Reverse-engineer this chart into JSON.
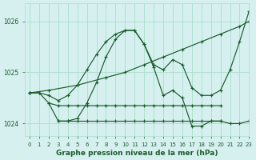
{
  "background_color": "#d6f0f0",
  "grid_color": "#aaddcc",
  "line_color": "#1a5c2a",
  "xlabel": "Graphe pression niveau de la mer (hPa)",
  "xlabel_color": "#1a5c2a",
  "xlim": [
    -0.5,
    23
  ],
  "ylim": [
    1023.75,
    1026.35
  ],
  "yticks": [
    1024,
    1025,
    1026
  ],
  "xticks": [
    0,
    1,
    2,
    3,
    4,
    5,
    6,
    7,
    8,
    9,
    10,
    11,
    12,
    13,
    14,
    15,
    16,
    17,
    18,
    19,
    20,
    21,
    22,
    23
  ],
  "series": [
    {
      "x": [
        0,
        1,
        2,
        3,
        4,
        5,
        6,
        7,
        8,
        9,
        10,
        11,
        12,
        13,
        14,
        15,
        16,
        17,
        18,
        19,
        20,
        21,
        22,
        23
      ],
      "y": [
        1024.6,
        1024.6,
        1024.55,
        1024.45,
        1024.55,
        1024.75,
        1025.05,
        1025.35,
        1025.6,
        1025.75,
        1025.82,
        1025.82,
        1025.55,
        1025.15,
        1025.05,
        1025.25,
        1025.15,
        1024.7,
        1024.55,
        1024.55,
        1024.65,
        1025.05,
        1025.6,
        1026.2
      ]
    },
    {
      "x": [
        0,
        2,
        5,
        8,
        10,
        12,
        14,
        16,
        18,
        20,
        22,
        23
      ],
      "y": [
        1024.6,
        1024.65,
        1024.75,
        1024.9,
        1025.0,
        1025.15,
        1025.3,
        1025.45,
        1025.6,
        1025.75,
        1025.9,
        1026.0
      ]
    },
    {
      "x": [
        2,
        3,
        4,
        5,
        6,
        7,
        8,
        9,
        10,
        11,
        12,
        13,
        14,
        15,
        16,
        17,
        18,
        19,
        20
      ],
      "y": [
        1024.4,
        1024.35,
        1024.35,
        1024.35,
        1024.35,
        1024.35,
        1024.35,
        1024.35,
        1024.35,
        1024.35,
        1024.35,
        1024.35,
        1024.35,
        1024.35,
        1024.35,
        1024.35,
        1024.35,
        1024.35,
        1024.35
      ]
    },
    {
      "x": [
        3,
        4,
        5,
        6,
        7,
        8,
        9,
        10,
        11,
        12,
        13,
        14,
        15,
        16,
        17,
        18,
        19,
        20
      ],
      "y": [
        1024.05,
        1024.05,
        1024.05,
        1024.05,
        1024.05,
        1024.05,
        1024.05,
        1024.05,
        1024.05,
        1024.05,
        1024.05,
        1024.05,
        1024.05,
        1024.05,
        1024.05,
        1024.05,
        1024.05,
        1024.05
      ]
    },
    {
      "x": [
        0,
        1,
        2,
        3,
        4,
        5,
        6,
        7,
        8,
        9,
        10,
        11,
        12,
        13,
        14,
        15,
        16,
        17,
        18,
        19,
        20,
        21,
        22,
        23
      ],
      "y": [
        1024.6,
        1024.6,
        1024.4,
        1024.05,
        1024.05,
        1024.1,
        1024.4,
        1024.8,
        1025.3,
        1025.65,
        1025.82,
        1025.82,
        1025.55,
        1025.1,
        1024.55,
        1024.65,
        1024.5,
        1023.95,
        1023.95,
        1024.05,
        1024.05,
        1024.0,
        1024.0,
        1024.05
      ]
    }
  ]
}
